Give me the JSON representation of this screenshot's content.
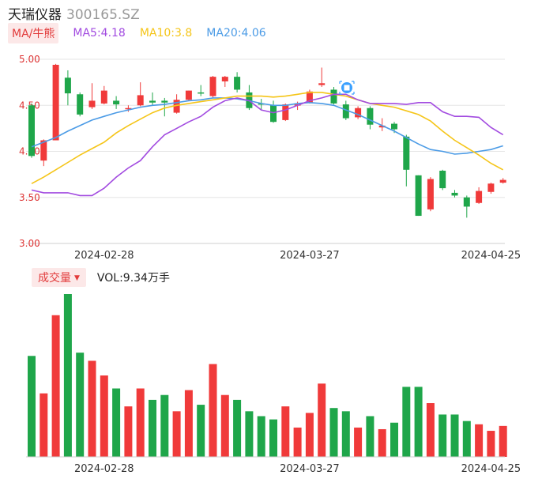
{
  "header": {
    "name": "天瑞仪器",
    "code": "300165.SZ"
  },
  "legend": {
    "badge": "MA/牛熊",
    "ma5": {
      "label": "MA5:4.18",
      "color": "#a24be0"
    },
    "ma10": {
      "label": "MA10:3.8",
      "color": "#f5c518"
    },
    "ma20": {
      "label": "MA20:4.06",
      "color": "#4b9be6"
    }
  },
  "volume_legend": {
    "badge": "成交量",
    "caret": "▼",
    "value": "VOL:9.34万手"
  },
  "colors": {
    "up": "#f03a3a",
    "down": "#1fa64a"
  },
  "chart_data": [
    {
      "type": "candlestick",
      "ylim": [
        3.0,
        5.0
      ],
      "yticks": [
        "5.00",
        "4.50",
        "4.00",
        "3.50",
        "3.00"
      ],
      "xtick_labels": [
        {
          "index": 6,
          "label": "2024-02-28"
        },
        {
          "index": 23,
          "label": "2024-03-27"
        },
        {
          "index": 38,
          "label": "2024-04-25"
        }
      ],
      "candles": [
        [
          4.5,
          3.95,
          4.52,
          3.93
        ],
        [
          3.9,
          4.12,
          4.13,
          3.84
        ],
        [
          4.12,
          4.94,
          4.95,
          4.12
        ],
        [
          4.8,
          4.63,
          4.88,
          4.5
        ],
        [
          4.62,
          4.4,
          4.64,
          4.38
        ],
        [
          4.48,
          4.55,
          4.74,
          4.46
        ],
        [
          4.52,
          4.66,
          4.71,
          4.51
        ],
        [
          4.55,
          4.51,
          4.6,
          4.46
        ],
        [
          4.46,
          4.47,
          4.5,
          4.43
        ],
        [
          4.5,
          4.61,
          4.75,
          4.49
        ],
        [
          4.55,
          4.53,
          4.64,
          4.5
        ],
        [
          4.55,
          4.53,
          4.58,
          4.38
        ],
        [
          4.42,
          4.56,
          4.62,
          4.41
        ],
        [
          4.56,
          4.66,
          4.66,
          4.55
        ],
        [
          4.64,
          4.63,
          4.72,
          4.6
        ],
        [
          4.6,
          4.81,
          4.82,
          4.58
        ],
        [
          4.76,
          4.81,
          4.82,
          4.7
        ],
        [
          4.81,
          4.67,
          4.86,
          4.64
        ],
        [
          4.64,
          4.47,
          4.72,
          4.45
        ],
        [
          4.52,
          4.51,
          4.57,
          4.45
        ],
        [
          4.5,
          4.32,
          4.55,
          4.31
        ],
        [
          4.34,
          4.51,
          4.52,
          4.33
        ],
        [
          4.51,
          4.51,
          4.54,
          4.45
        ],
        [
          4.53,
          4.65,
          4.67,
          4.52
        ],
        [
          4.72,
          4.74,
          4.91,
          4.7
        ],
        [
          4.67,
          4.52,
          4.7,
          4.51
        ],
        [
          4.51,
          4.36,
          4.55,
          4.34
        ],
        [
          4.37,
          4.47,
          4.49,
          4.35
        ],
        [
          4.47,
          4.29,
          4.49,
          4.24
        ],
        [
          4.26,
          4.28,
          4.36,
          4.22
        ],
        [
          4.3,
          4.24,
          4.32,
          4.2
        ],
        [
          4.16,
          3.8,
          4.18,
          3.62
        ],
        [
          3.74,
          3.3,
          3.74,
          3.3
        ],
        [
          3.37,
          3.7,
          3.72,
          3.35
        ],
        [
          3.79,
          3.6,
          3.8,
          3.58
        ],
        [
          3.55,
          3.52,
          3.58,
          3.5
        ],
        [
          3.5,
          3.4,
          3.52,
          3.28
        ],
        [
          3.44,
          3.57,
          3.61,
          3.43
        ],
        [
          3.56,
          3.65,
          3.66,
          3.54
        ],
        [
          3.66,
          3.69,
          3.71,
          3.65
        ]
      ],
      "ma5": [
        3.58,
        3.55,
        3.55,
        3.55,
        3.52,
        3.52,
        3.6,
        3.72,
        3.82,
        3.9,
        4.05,
        4.18,
        4.25,
        4.32,
        4.38,
        4.48,
        4.55,
        4.58,
        4.55,
        4.45,
        4.42,
        4.45,
        4.5,
        4.55,
        4.58,
        4.62,
        4.62,
        4.56,
        4.52,
        4.52,
        4.52,
        4.51,
        4.53,
        4.53,
        4.43,
        4.38,
        4.38,
        4.37,
        4.26,
        4.18
      ],
      "ma10": [
        3.65,
        3.72,
        3.8,
        3.88,
        3.96,
        4.03,
        4.1,
        4.2,
        4.28,
        4.35,
        4.42,
        4.47,
        4.5,
        4.52,
        4.54,
        4.56,
        4.58,
        4.6,
        4.6,
        4.6,
        4.59,
        4.6,
        4.62,
        4.64,
        4.64,
        4.62,
        4.6,
        4.56,
        4.52,
        4.5,
        4.48,
        4.44,
        4.4,
        4.33,
        4.22,
        4.12,
        4.04,
        3.96,
        3.87,
        3.8
      ],
      "ma20": [
        4.05,
        4.1,
        4.15,
        4.22,
        4.28,
        4.34,
        4.38,
        4.42,
        4.45,
        4.48,
        4.5,
        4.51,
        4.53,
        4.55,
        4.56,
        4.58,
        4.58,
        4.57,
        4.55,
        4.52,
        4.5,
        4.5,
        4.52,
        4.53,
        4.52,
        4.5,
        4.45,
        4.4,
        4.34,
        4.28,
        4.22,
        4.15,
        4.08,
        4.02,
        4.0,
        3.97,
        3.98,
        4.0,
        4.02,
        4.06
      ]
    },
    {
      "type": "bar",
      "ylabel": "成交量",
      "values": [
        62,
        39,
        87,
        100,
        64,
        59,
        50,
        42,
        31,
        42,
        35,
        38,
        28,
        41,
        32,
        57,
        38,
        35,
        28,
        25,
        23,
        31,
        18,
        27,
        45,
        30,
        28,
        18,
        25,
        17,
        21,
        43,
        43,
        33,
        26,
        26,
        22,
        20,
        16,
        19
      ]
    }
  ]
}
